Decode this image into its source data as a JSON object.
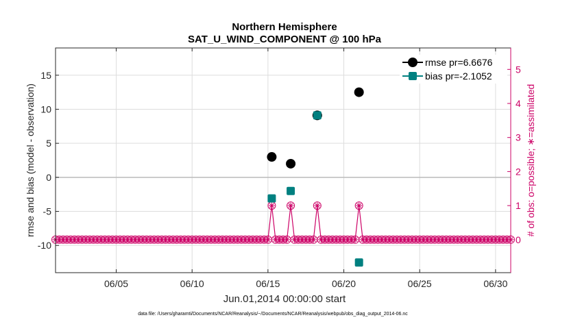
{
  "chart_data": {
    "type": "line",
    "title": "Northern Hemisphere",
    "subtitle": "SAT_U_WIND_COMPONENT @ 100 hPa",
    "xlabel": "Jun.01,2014 00:00:00 start",
    "ylabel": "rmse and bias (model - observation)",
    "y2label": "# of obs: o=possible; ∗=assimilated",
    "footnote": "data file: /Users/gharamti/Documents/NCAR/Reanalysis/~/Documents/NCAR/Reanalysis/webpub/obs_diag_output_2014-06.nc",
    "x_unit": "day of June 2014",
    "xlim": [
      1.0,
      31.0
    ],
    "ylim": [
      -14,
      19
    ],
    "y2lim": [
      -0.97,
      5.63
    ],
    "x_ticks": [
      {
        "value": 5.0,
        "label": "06/05"
      },
      {
        "value": 10.0,
        "label": "06/10"
      },
      {
        "value": 15.0,
        "label": "06/15"
      },
      {
        "value": 20.0,
        "label": "06/20"
      },
      {
        "value": 25.0,
        "label": "06/25"
      },
      {
        "value": 30.0,
        "label": "06/30"
      }
    ],
    "y_ticks": [
      {
        "value": -10,
        "label": "-10"
      },
      {
        "value": -5,
        "label": "-5"
      },
      {
        "value": 0,
        "label": "0"
      },
      {
        "value": 5,
        "label": "5"
      },
      {
        "value": 10,
        "label": "10"
      },
      {
        "value": 15,
        "label": "15"
      }
    ],
    "y2_ticks": [
      {
        "value": 0,
        "label": "0"
      },
      {
        "value": 1,
        "label": "1"
      },
      {
        "value": 2,
        "label": "2"
      },
      {
        "value": 3,
        "label": "3"
      },
      {
        "value": 4,
        "label": "4"
      },
      {
        "value": 5,
        "label": "5"
      }
    ],
    "legend_position": "top-right",
    "colors": {
      "rmse": "#000000",
      "bias": "#008080",
      "obs": "#cc0066",
      "zero_line": "#bbbbbb"
    },
    "series": [
      {
        "name": "rmse",
        "legend": "rmse pr=6.6676",
        "axis": "left",
        "marker": "circle",
        "points": [
          [
            15.25,
            3.0
          ],
          [
            16.5,
            2.0
          ],
          [
            18.25,
            9.1
          ],
          [
            21.0,
            12.5
          ]
        ]
      },
      {
        "name": "bias",
        "legend": "bias pr=-2.1052",
        "axis": "left",
        "marker": "square",
        "points": [
          [
            15.25,
            -3.1
          ],
          [
            16.5,
            -2.0
          ],
          [
            18.25,
            9.1
          ],
          [
            21.0,
            -12.5
          ]
        ]
      },
      {
        "name": "obs_possible",
        "axis": "right",
        "marker": "circle-open",
        "x_start": 1.0,
        "x_step": 0.25,
        "count": 121,
        "default_value": 0,
        "overrides": [
          [
            15.25,
            1
          ],
          [
            16.5,
            1
          ],
          [
            18.25,
            1
          ],
          [
            21.0,
            1
          ]
        ]
      },
      {
        "name": "obs_assimilated",
        "axis": "right",
        "marker": "asterisk",
        "x_start": 1.0,
        "x_step": 0.25,
        "count": 121,
        "default_value": 0,
        "overrides": [
          [
            15.25,
            1
          ],
          [
            16.5,
            1
          ],
          [
            18.25,
            1
          ],
          [
            21.0,
            1
          ]
        ]
      }
    ]
  }
}
